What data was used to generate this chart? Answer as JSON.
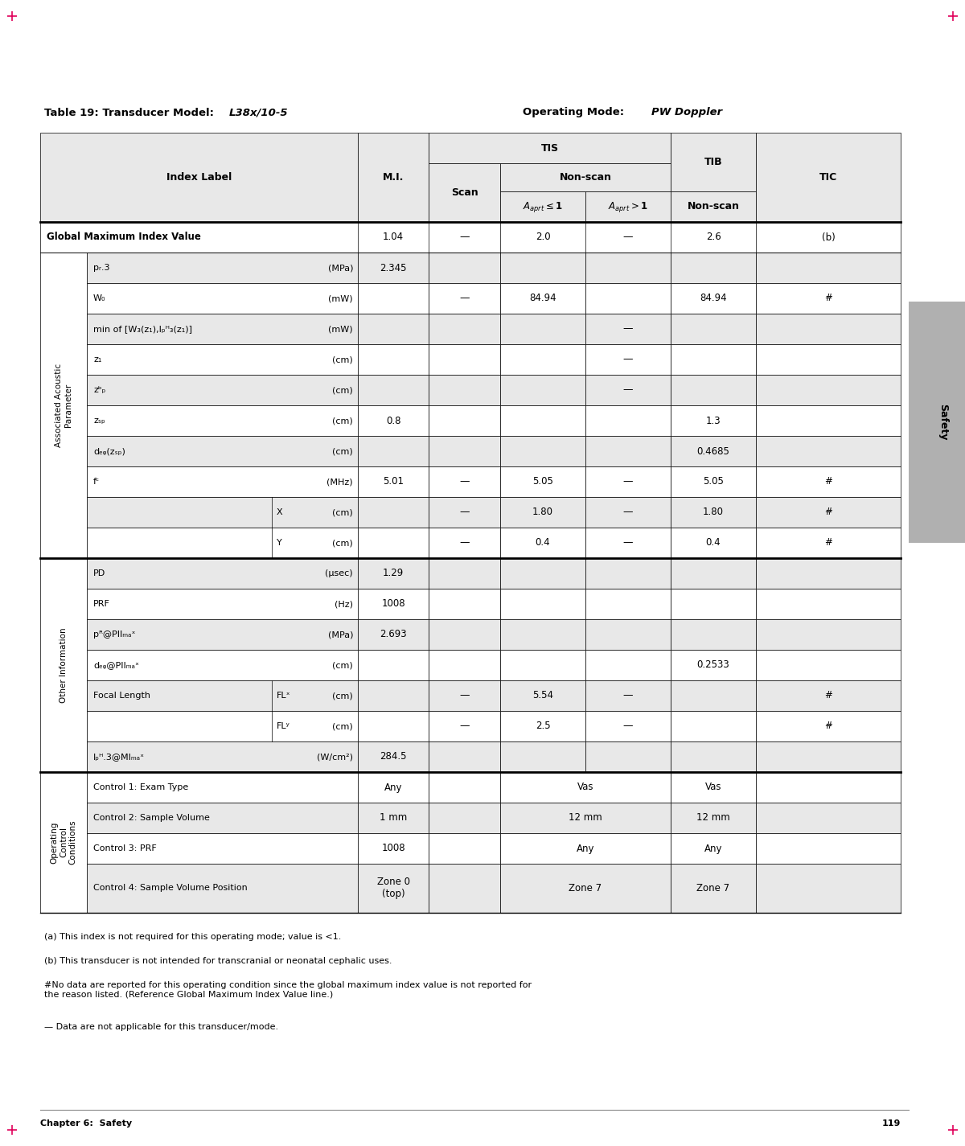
{
  "title_left": "Table 19: Transducer Model: ",
  "title_left_bold_part": "L38x/10-5",
  "title_right": "Operating Mode: ",
  "title_right_italic_part": "PW Doppler",
  "page_label": "Safety",
  "chapter_label": "Chapter 6:  Safety",
  "page_number": "119",
  "footnotes": [
    "(a) This index is not required for this operating mode; value is <1.",
    "(b) This transducer is not intended for transcranial or neonatal cephalic uses.",
    "#No data are reported for this operating condition since the global maximum index value is not reported for\nthe reason listed. (Reference Global Maximum Index Value line.)",
    "— Data are not applicable for this transducer/mode."
  ],
  "header_bg": "#e8e8e8",
  "row_bg_white": "#ffffff",
  "row_bg_gray": "#e8e8e8",
  "border_color": "#000000",
  "thick_border": 2.0,
  "thin_border": 0.5
}
